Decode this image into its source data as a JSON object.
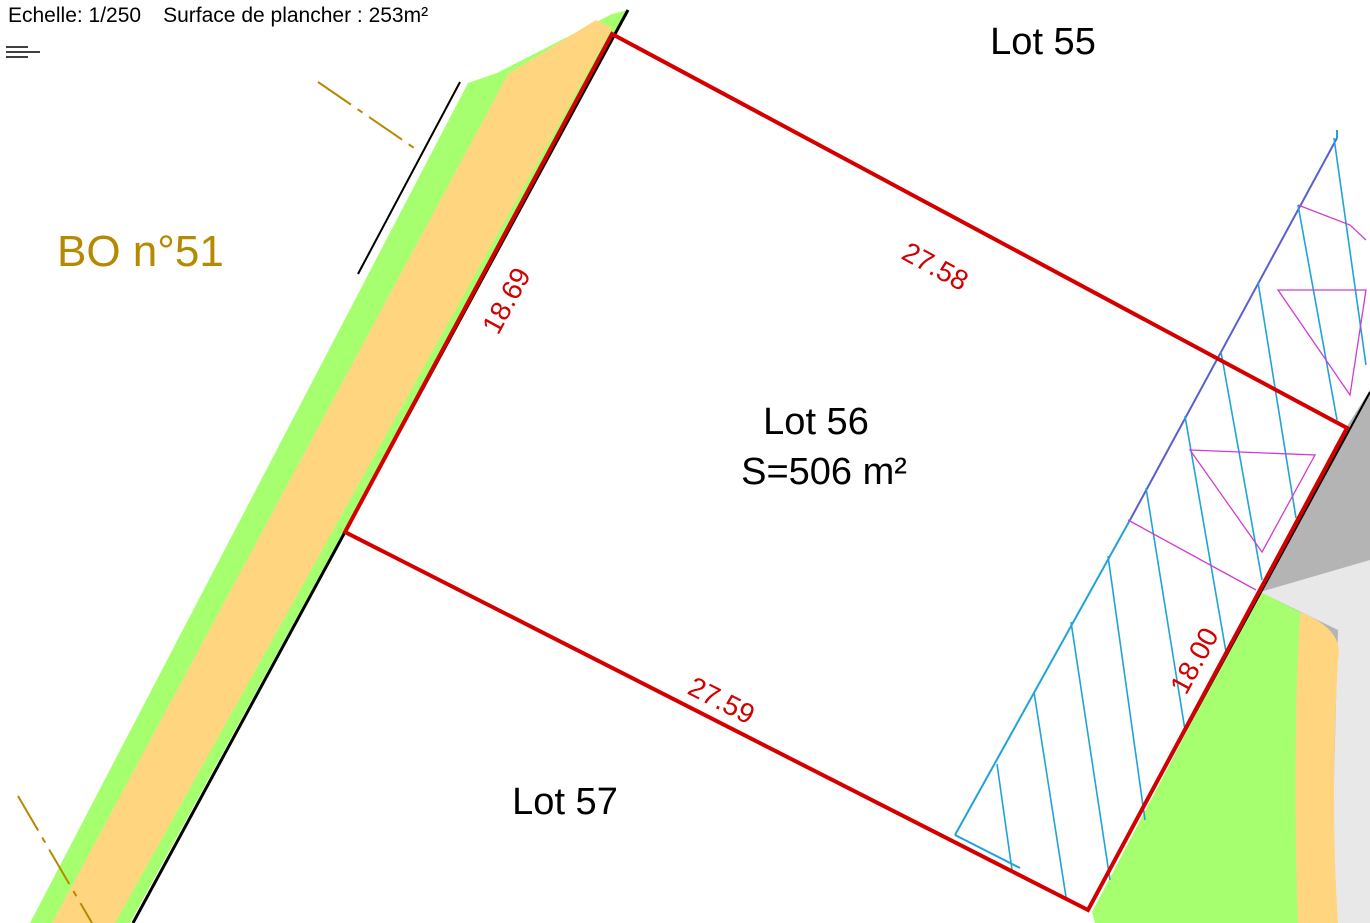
{
  "header": {
    "scale": "Echelle: 1/250",
    "floor_area": "Surface de plancher : 253m²"
  },
  "parcel": {
    "name": "Lot 56",
    "area": "S=506 m²",
    "dimensions": {
      "top": "27.58",
      "left": "18.69",
      "bottom": "27.59",
      "right": "18.00"
    }
  },
  "neighbors": {
    "north": "Lot 55",
    "south": "Lot 57",
    "west": "BO n°51"
  },
  "colors": {
    "boundary": "#d40000",
    "green_strip": "#a6ff6e",
    "yellow_strip": "#ffd67f",
    "hatch": "#22a3d7",
    "hatch_edge": "#5a5fd0",
    "triangle": "#d03cd0",
    "road_grey": "#b4b4b4",
    "bo_label": "#b58a00"
  },
  "icons": [
    "menu-icon"
  ]
}
